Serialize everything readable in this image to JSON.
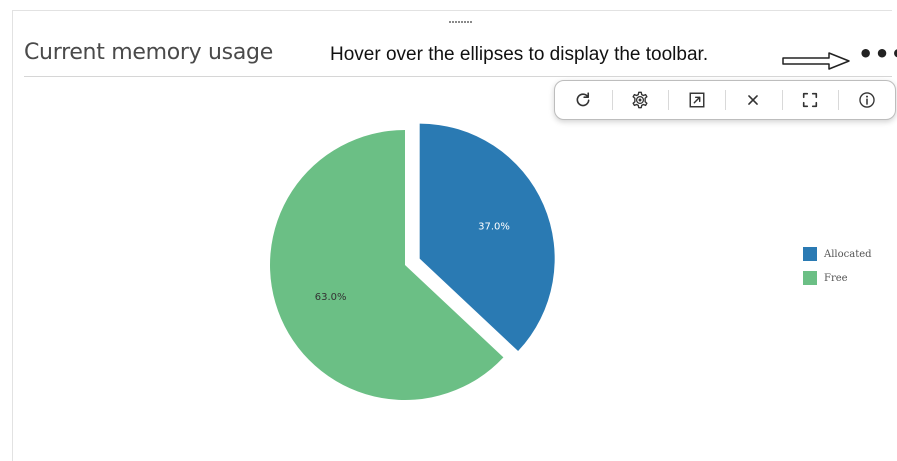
{
  "panel": {
    "title": "Current memory usage"
  },
  "annotation": {
    "hint_text": "Hover over the ellipses to display the toolbar.",
    "ellipsis_text": "•••"
  },
  "toolbar": {
    "buttons": [
      {
        "name": "refresh",
        "icon": "refresh-icon"
      },
      {
        "name": "settings",
        "icon": "gear-icon"
      },
      {
        "name": "open-external",
        "icon": "open-in-new-icon"
      },
      {
        "name": "close",
        "icon": "close-icon"
      },
      {
        "name": "fullscreen",
        "icon": "fullscreen-icon"
      },
      {
        "name": "info",
        "icon": "info-icon"
      }
    ]
  },
  "colors": {
    "allocated": "#2a7ab3",
    "free": "#6bbf85"
  },
  "chart_data": {
    "type": "pie",
    "title": "",
    "categories": [
      "Allocated",
      "Free"
    ],
    "values": [
      37.0,
      63.0
    ],
    "labels": [
      "37.0%",
      "63.0%"
    ],
    "colors": [
      "#2a7ab3",
      "#6bbf85"
    ],
    "exploded": [
      "Allocated"
    ],
    "legend_position": "right"
  }
}
